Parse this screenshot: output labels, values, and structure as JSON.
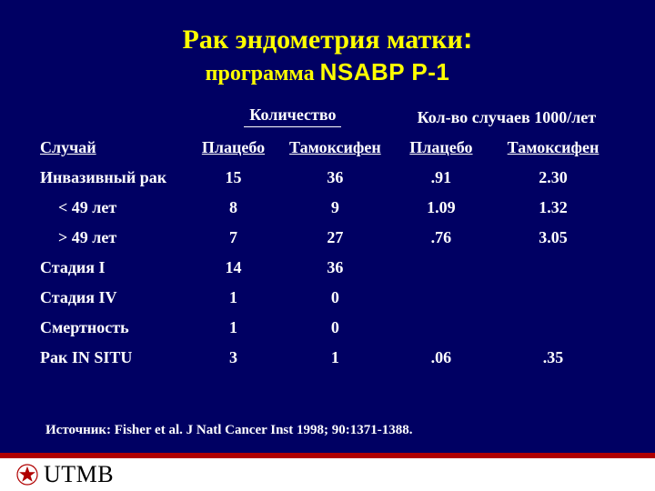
{
  "title": {
    "line1": "Рак эндометрия матки",
    "colon": ":",
    "line2_prefix": "программа ",
    "line2_program": "NSABP P-1"
  },
  "table": {
    "group_headers": {
      "count": "Количество",
      "rate": "Кол-во случаев 1000/лет"
    },
    "sub_headers": {
      "case": "Случай",
      "placebo1": "Плацебо",
      "tam1": "Тамоксифен",
      "placebo2": "Плацебо",
      "tam2": "Тамоксифен"
    },
    "rows": [
      {
        "label": "Инвазивный рак",
        "indent": false,
        "c1": "15",
        "c2": "36",
        "c3": ".91",
        "c4": "2.30"
      },
      {
        "label": "< 49 лет",
        "indent": true,
        "c1": "8",
        "c2": "9",
        "c3": "1.09",
        "c4": "1.32"
      },
      {
        "label": "> 49 лет",
        "indent": true,
        "c1": "7",
        "c2": "27",
        "c3": ".76",
        "c4": "3.05"
      },
      {
        "label": "Стадия I",
        "indent": false,
        "c1": "14",
        "c2": "36",
        "c3": "",
        "c4": ""
      },
      {
        "label": "Стадия IV",
        "indent": false,
        "c1": "1",
        "c2": "0",
        "c3": "",
        "c4": ""
      },
      {
        "label": "Смертность",
        "indent": false,
        "c1": "1",
        "c2": "0",
        "c3": "",
        "c4": ""
      },
      {
        "label": "Рак IN SITU",
        "indent": false,
        "c1": "3",
        "c2": "1",
        "c3": ".06",
        "c4": ".35"
      }
    ]
  },
  "source": "Источник: Fisher et al. J Natl Cancer Inst 1998; 90:1371-1388.",
  "logo_text": "UTMB",
  "colors": {
    "background": "#000063",
    "title": "#ffff00",
    "text": "#ffffff",
    "accent_red": "#b00000",
    "bar_bg": "#ffffff"
  }
}
